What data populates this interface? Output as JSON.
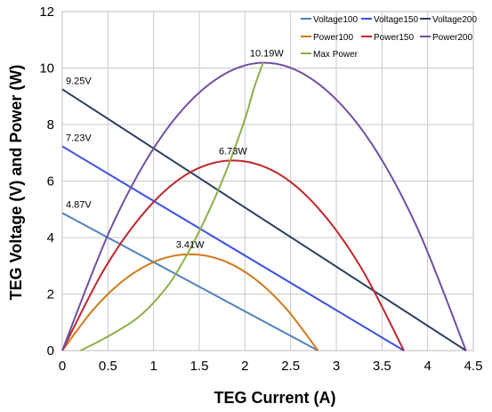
{
  "chart_data": {
    "type": "line",
    "xlabel": "TEG Current (A)",
    "ylabel": "TEG Voltage (V) and Power (W)",
    "xlim": [
      0,
      4.5
    ],
    "ylim": [
      0,
      12
    ],
    "xticks": [
      "0",
      "0.5",
      "1",
      "1.5",
      "2",
      "2.5",
      "3",
      "3.5",
      "4",
      "4.5"
    ],
    "yticks": [
      "0",
      "2",
      "4",
      "6",
      "8",
      "10",
      "12"
    ],
    "grid": true,
    "legend_position": "top-right",
    "series": [
      {
        "name": "Voltage100",
        "color": "#4f81bd",
        "x": [
          0,
          2.8
        ],
        "y": [
          4.87,
          0
        ]
      },
      {
        "name": "Voltage150",
        "color": "#3b4fe0",
        "x": [
          0,
          3.74
        ],
        "y": [
          7.23,
          0
        ]
      },
      {
        "name": "Voltage200",
        "color": "#2c3e63",
        "x": [
          0,
          4.42
        ],
        "y": [
          9.25,
          0
        ]
      },
      {
        "name": "Power100",
        "color": "#d07a1e",
        "x": [
          0,
          0.35,
          0.7,
          1.05,
          1.4,
          1.75,
          2.1,
          2.45,
          2.8
        ],
        "y": [
          0,
          1.49,
          2.56,
          3.2,
          3.41,
          3.2,
          2.56,
          1.49,
          0
        ]
      },
      {
        "name": "Power150",
        "color": "#c0262c",
        "x": [
          0,
          0.47,
          0.94,
          1.4,
          1.87,
          2.34,
          2.8,
          3.27,
          3.74
        ],
        "y": [
          0,
          2.94,
          5.05,
          6.31,
          6.73,
          6.31,
          5.05,
          2.94,
          0
        ]
      },
      {
        "name": "Power200",
        "color": "#7050a0",
        "x": [
          0,
          0.55,
          1.1,
          1.66,
          2.21,
          2.76,
          3.32,
          3.87,
          4.42
        ],
        "y": [
          0,
          4.46,
          7.64,
          9.55,
          10.19,
          9.55,
          7.64,
          4.46,
          0
        ]
      },
      {
        "name": "Max Power",
        "color": "#8cb04a",
        "x": [
          0.2,
          0.5,
          0.8,
          1.0,
          1.2,
          1.4,
          1.6,
          1.8,
          2.0,
          2.1,
          2.2
        ],
        "y": [
          0,
          0.5,
          1.1,
          1.7,
          2.5,
          3.6,
          4.9,
          6.4,
          8.2,
          9.3,
          10.2
        ]
      }
    ],
    "annotations": [
      {
        "text": "9.25V",
        "x": 0,
        "y": 9.25
      },
      {
        "text": "7.23V",
        "x": 0,
        "y": 7.23
      },
      {
        "text": "4.87V",
        "x": 0,
        "y": 4.87
      },
      {
        "text": "10.19W",
        "x": 2.21,
        "y": 10.19
      },
      {
        "text": "6.73W",
        "x": 1.87,
        "y": 6.73
      },
      {
        "text": "3.41W",
        "x": 1.4,
        "y": 3.41
      }
    ]
  }
}
